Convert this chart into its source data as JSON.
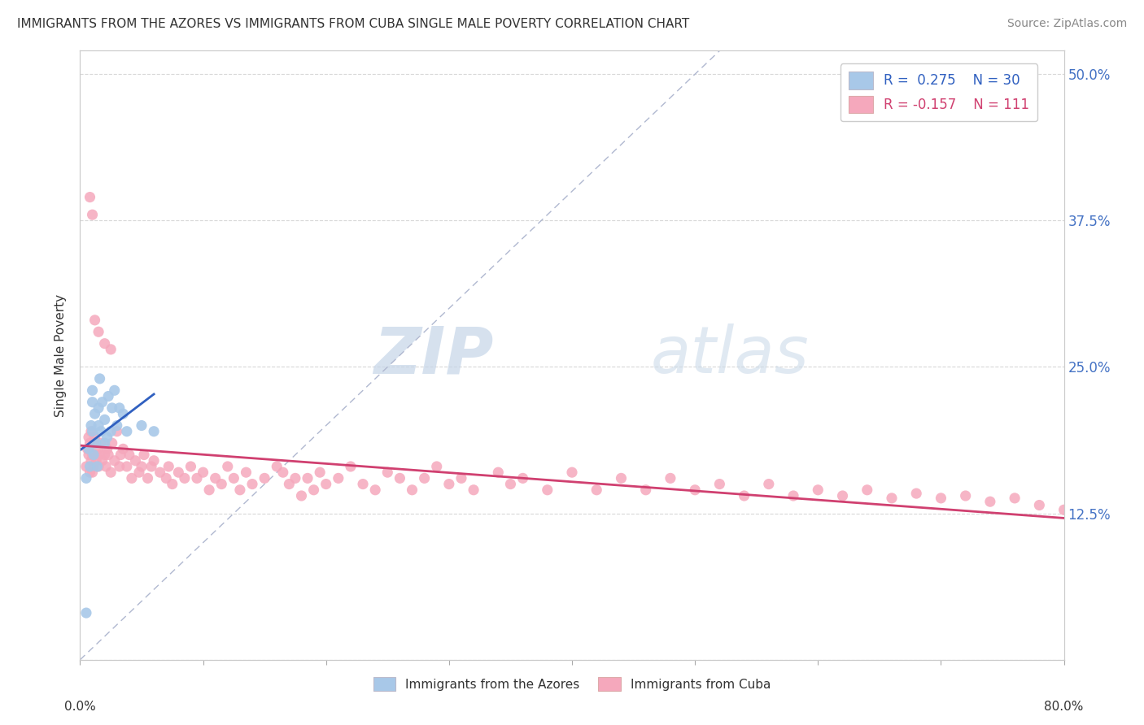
{
  "title": "IMMIGRANTS FROM THE AZORES VS IMMIGRANTS FROM CUBA SINGLE MALE POVERTY CORRELATION CHART",
  "source": "Source: ZipAtlas.com",
  "ylabel": "Single Male Poverty",
  "ytick_vals": [
    0.0,
    0.125,
    0.25,
    0.375,
    0.5
  ],
  "ytick_labels": [
    "",
    "12.5%",
    "25.0%",
    "37.5%",
    "50.0%"
  ],
  "xlim": [
    0.0,
    0.8
  ],
  "ylim": [
    0.0,
    0.52
  ],
  "legend_r1": "R =  0.275",
  "legend_n1": "N = 30",
  "legend_r2": "R = -0.157",
  "legend_n2": "N = 111",
  "label1": "Immigrants from the Azores",
  "label2": "Immigrants from Cuba",
  "color1": "#a8c8e8",
  "color2": "#f5a8bc",
  "trend_color1": "#3060c0",
  "trend_color2": "#d04070",
  "watermark_zip": "ZIP",
  "watermark_atlas": "atlas",
  "azores_x": [
    0.005,
    0.007,
    0.008,
    0.009,
    0.01,
    0.01,
    0.01,
    0.011,
    0.012,
    0.013,
    0.014,
    0.015,
    0.015,
    0.016,
    0.017,
    0.018,
    0.02,
    0.02,
    0.022,
    0.023,
    0.025,
    0.026,
    0.028,
    0.03,
    0.032,
    0.035,
    0.038,
    0.05,
    0.06,
    0.005
  ],
  "azores_y": [
    0.155,
    0.18,
    0.165,
    0.2,
    0.195,
    0.22,
    0.23,
    0.175,
    0.21,
    0.185,
    0.165,
    0.2,
    0.215,
    0.24,
    0.195,
    0.22,
    0.185,
    0.205,
    0.19,
    0.225,
    0.195,
    0.215,
    0.23,
    0.2,
    0.215,
    0.21,
    0.195,
    0.2,
    0.195,
    0.04
  ],
  "cuba_x": [
    0.005,
    0.006,
    0.007,
    0.007,
    0.008,
    0.008,
    0.009,
    0.009,
    0.01,
    0.01,
    0.011,
    0.011,
    0.012,
    0.012,
    0.013,
    0.014,
    0.015,
    0.016,
    0.017,
    0.018,
    0.02,
    0.021,
    0.022,
    0.023,
    0.025,
    0.026,
    0.028,
    0.03,
    0.032,
    0.033,
    0.035,
    0.038,
    0.04,
    0.042,
    0.045,
    0.048,
    0.05,
    0.052,
    0.055,
    0.058,
    0.06,
    0.065,
    0.07,
    0.072,
    0.075,
    0.08,
    0.085,
    0.09,
    0.095,
    0.1,
    0.105,
    0.11,
    0.115,
    0.12,
    0.125,
    0.13,
    0.135,
    0.14,
    0.15,
    0.16,
    0.165,
    0.17,
    0.175,
    0.18,
    0.185,
    0.19,
    0.195,
    0.2,
    0.21,
    0.22,
    0.23,
    0.24,
    0.25,
    0.26,
    0.27,
    0.28,
    0.29,
    0.3,
    0.31,
    0.32,
    0.34,
    0.35,
    0.36,
    0.38,
    0.4,
    0.42,
    0.44,
    0.46,
    0.48,
    0.5,
    0.52,
    0.54,
    0.56,
    0.58,
    0.6,
    0.62,
    0.64,
    0.66,
    0.68,
    0.7,
    0.72,
    0.74,
    0.76,
    0.78,
    0.8,
    0.008,
    0.01,
    0.012,
    0.015,
    0.02,
    0.025
  ],
  "cuba_y": [
    0.165,
    0.18,
    0.175,
    0.19,
    0.16,
    0.185,
    0.17,
    0.195,
    0.16,
    0.175,
    0.165,
    0.185,
    0.175,
    0.19,
    0.17,
    0.18,
    0.165,
    0.175,
    0.185,
    0.17,
    0.175,
    0.165,
    0.18,
    0.175,
    0.16,
    0.185,
    0.17,
    0.195,
    0.165,
    0.175,
    0.18,
    0.165,
    0.175,
    0.155,
    0.17,
    0.16,
    0.165,
    0.175,
    0.155,
    0.165,
    0.17,
    0.16,
    0.155,
    0.165,
    0.15,
    0.16,
    0.155,
    0.165,
    0.155,
    0.16,
    0.145,
    0.155,
    0.15,
    0.165,
    0.155,
    0.145,
    0.16,
    0.15,
    0.155,
    0.165,
    0.16,
    0.15,
    0.155,
    0.14,
    0.155,
    0.145,
    0.16,
    0.15,
    0.155,
    0.165,
    0.15,
    0.145,
    0.16,
    0.155,
    0.145,
    0.155,
    0.165,
    0.15,
    0.155,
    0.145,
    0.16,
    0.15,
    0.155,
    0.145,
    0.16,
    0.145,
    0.155,
    0.145,
    0.155,
    0.145,
    0.15,
    0.14,
    0.15,
    0.14,
    0.145,
    0.14,
    0.145,
    0.138,
    0.142,
    0.138,
    0.14,
    0.135,
    0.138,
    0.132,
    0.128,
    0.395,
    0.38,
    0.29,
    0.28,
    0.27,
    0.265
  ]
}
